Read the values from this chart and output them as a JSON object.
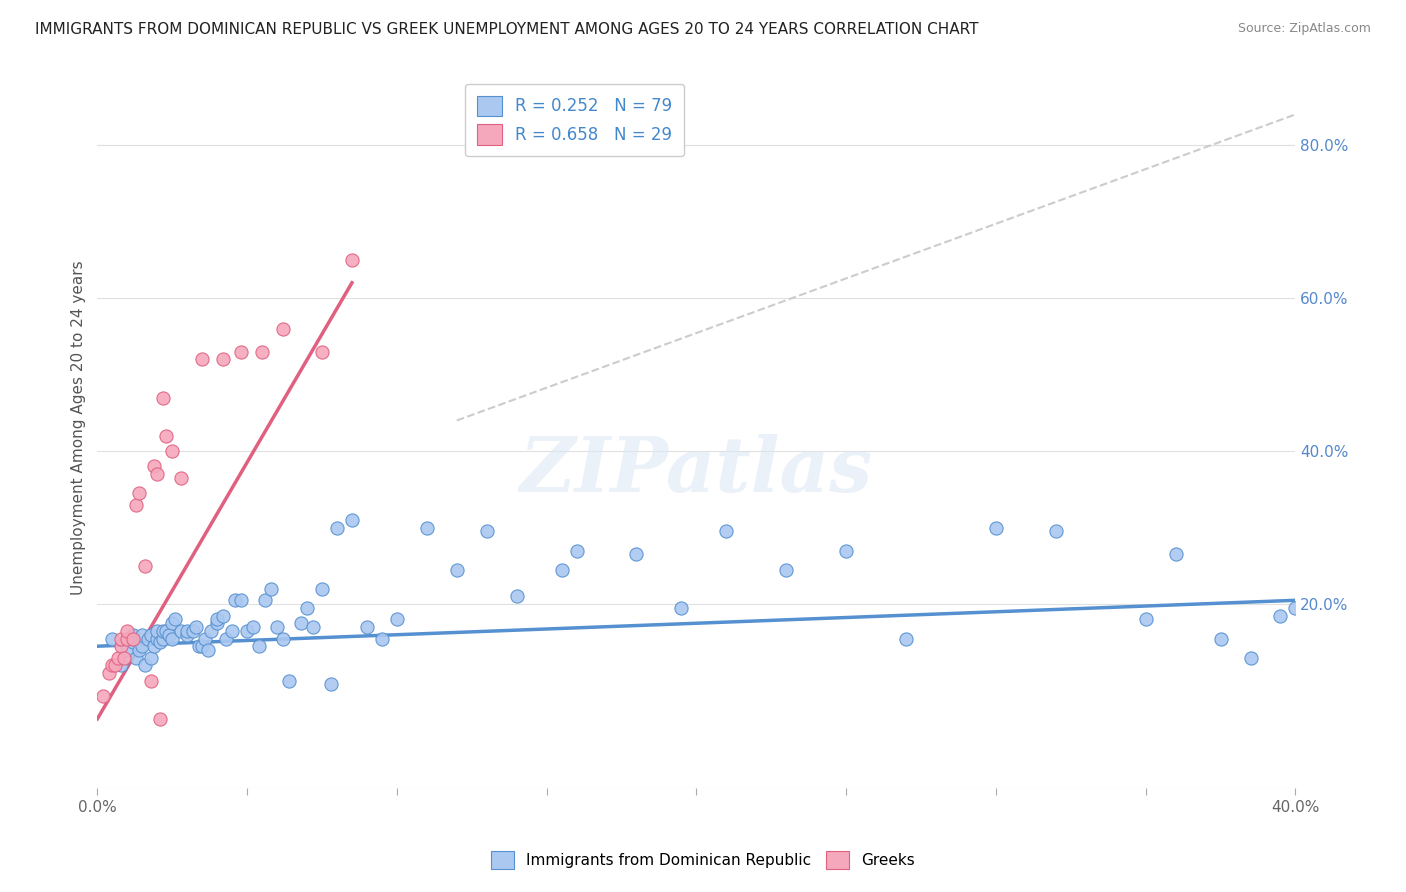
{
  "title": "IMMIGRANTS FROM DOMINICAN REPUBLIC VS GREEK UNEMPLOYMENT AMONG AGES 20 TO 24 YEARS CORRELATION CHART",
  "source": "Source: ZipAtlas.com",
  "ylabel": "Unemployment Among Ages 20 to 24 years",
  "ylabel_right_labels": [
    "80.0%",
    "60.0%",
    "40.0%",
    "20.0%"
  ],
  "ylabel_right_positions": [
    0.8,
    0.6,
    0.4,
    0.2
  ],
  "legend_blue_r": "R = 0.252",
  "legend_blue_n": "N = 79",
  "legend_pink_r": "R = 0.658",
  "legend_pink_n": "N = 29",
  "xlim": [
    0.0,
    0.4
  ],
  "ylim": [
    -0.04,
    0.9
  ],
  "blue_color": "#aac8f0",
  "pink_color": "#f5a8bc",
  "blue_line_color": "#5590d0",
  "pink_line_color": "#e06080",
  "dashed_line_color": "#cccccc",
  "watermark": "ZIPatlas",
  "blue_scatter_x": [
    0.005,
    0.008,
    0.01,
    0.012,
    0.012,
    0.013,
    0.014,
    0.015,
    0.015,
    0.016,
    0.017,
    0.018,
    0.018,
    0.019,
    0.02,
    0.02,
    0.021,
    0.022,
    0.022,
    0.023,
    0.024,
    0.025,
    0.025,
    0.026,
    0.028,
    0.03,
    0.03,
    0.032,
    0.033,
    0.034,
    0.035,
    0.036,
    0.037,
    0.038,
    0.04,
    0.04,
    0.042,
    0.043,
    0.045,
    0.046,
    0.048,
    0.05,
    0.052,
    0.054,
    0.056,
    0.058,
    0.06,
    0.062,
    0.064,
    0.068,
    0.07,
    0.072,
    0.075,
    0.078,
    0.08,
    0.085,
    0.09,
    0.095,
    0.1,
    0.11,
    0.12,
    0.13,
    0.14,
    0.155,
    0.16,
    0.18,
    0.195,
    0.21,
    0.23,
    0.25,
    0.27,
    0.3,
    0.32,
    0.35,
    0.36,
    0.375,
    0.385,
    0.395,
    0.4
  ],
  "blue_scatter_y": [
    0.155,
    0.12,
    0.14,
    0.15,
    0.16,
    0.13,
    0.14,
    0.145,
    0.16,
    0.12,
    0.155,
    0.13,
    0.16,
    0.145,
    0.155,
    0.165,
    0.15,
    0.155,
    0.165,
    0.165,
    0.16,
    0.155,
    0.175,
    0.18,
    0.165,
    0.16,
    0.165,
    0.165,
    0.17,
    0.145,
    0.145,
    0.155,
    0.14,
    0.165,
    0.175,
    0.18,
    0.185,
    0.155,
    0.165,
    0.205,
    0.205,
    0.165,
    0.17,
    0.145,
    0.205,
    0.22,
    0.17,
    0.155,
    0.1,
    0.175,
    0.195,
    0.17,
    0.22,
    0.095,
    0.3,
    0.31,
    0.17,
    0.155,
    0.18,
    0.3,
    0.245,
    0.295,
    0.21,
    0.245,
    0.27,
    0.265,
    0.195,
    0.295,
    0.245,
    0.27,
    0.155,
    0.3,
    0.295,
    0.18,
    0.265,
    0.155,
    0.13,
    0.185,
    0.195
  ],
  "pink_scatter_x": [
    0.002,
    0.004,
    0.005,
    0.006,
    0.007,
    0.008,
    0.008,
    0.009,
    0.01,
    0.01,
    0.012,
    0.013,
    0.014,
    0.016,
    0.018,
    0.019,
    0.02,
    0.021,
    0.022,
    0.023,
    0.025,
    0.028,
    0.035,
    0.042,
    0.048,
    0.055,
    0.062,
    0.075,
    0.085
  ],
  "pink_scatter_y": [
    0.08,
    0.11,
    0.12,
    0.12,
    0.13,
    0.145,
    0.155,
    0.13,
    0.155,
    0.165,
    0.155,
    0.33,
    0.345,
    0.25,
    0.1,
    0.38,
    0.37,
    0.05,
    0.47,
    0.42,
    0.4,
    0.365,
    0.52,
    0.52,
    0.53,
    0.53,
    0.56,
    0.53,
    0.65
  ],
  "blue_line_x": [
    0.0,
    0.4
  ],
  "blue_line_y": [
    0.145,
    0.205
  ],
  "pink_line_x": [
    0.0,
    0.085
  ],
  "pink_line_y": [
    0.05,
    0.62
  ],
  "dashed_line_x": [
    0.12,
    0.4
  ],
  "dashed_line_y": [
    0.44,
    0.84
  ],
  "grid_color": "#e0e0e0",
  "bg_color": "#ffffff",
  "x_tick_positions": [
    0.0,
    0.05,
    0.1,
    0.15,
    0.2,
    0.25,
    0.3,
    0.35,
    0.4
  ],
  "x_tick_labels_show_only_ends": true
}
